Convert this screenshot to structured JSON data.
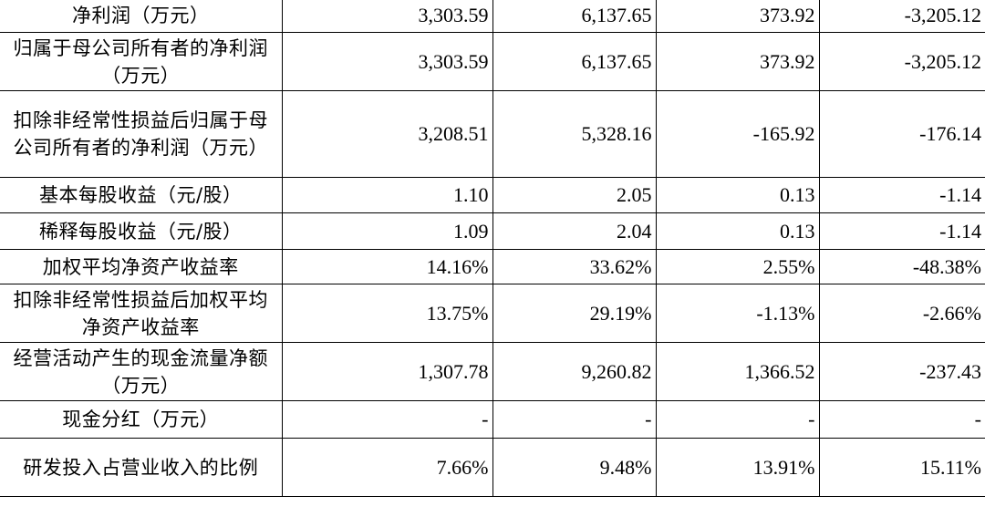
{
  "table": {
    "rows": [
      {
        "label": "净利润（万元）",
        "values": [
          "3,303.59",
          "6,137.65",
          "373.92",
          "-3,205.12"
        ]
      },
      {
        "label": "归属于母公司所有者的净利润（万元）",
        "values": [
          "3,303.59",
          "6,137.65",
          "373.92",
          "-3,205.12"
        ]
      },
      {
        "label": "扣除非经常性损益后归属于母公司所有者的净利润（万元）",
        "values": [
          "3,208.51",
          "5,328.16",
          "-165.92",
          "-176.14"
        ]
      },
      {
        "label": "基本每股收益（元/股）",
        "values": [
          "1.10",
          "2.05",
          "0.13",
          "-1.14"
        ]
      },
      {
        "label": "稀释每股收益（元/股）",
        "values": [
          "1.09",
          "2.04",
          "0.13",
          "-1.14"
        ]
      },
      {
        "label": "加权平均净资产收益率",
        "values": [
          "14.16%",
          "33.62%",
          "2.55%",
          "-48.38%"
        ]
      },
      {
        "label": "扣除非经常性损益后加权平均净资产收益率",
        "values": [
          "13.75%",
          "29.19%",
          "-1.13%",
          "-2.66%"
        ]
      },
      {
        "label": "经营活动产生的现金流量净额（万元）",
        "values": [
          "1,307.78",
          "9,260.82",
          "1,366.52",
          "-237.43"
        ]
      },
      {
        "label": "现金分红（万元）",
        "values": [
          "-",
          "-",
          "-",
          "-"
        ]
      },
      {
        "label": "研发投入占营业收入的比例",
        "values": [
          "7.66%",
          "9.48%",
          "13.91%",
          "15.11%"
        ]
      }
    ]
  }
}
